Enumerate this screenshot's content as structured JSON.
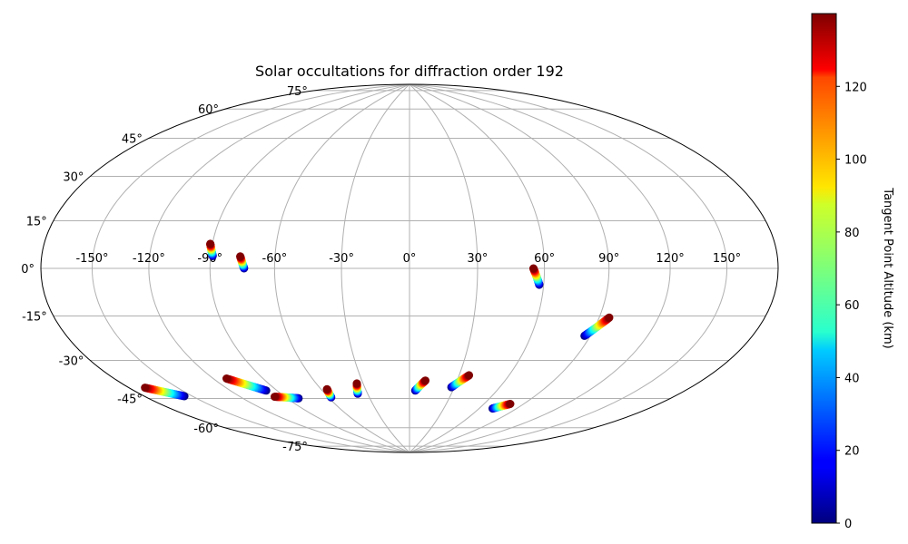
{
  "chart_data": {
    "type": "scatter",
    "projection": "hammer",
    "title": "Solar occultations for diffraction order 192",
    "xlabel": "",
    "ylabel": "",
    "grid": true,
    "lon_ticks": [
      -150,
      -120,
      -90,
      -60,
      -30,
      0,
      30,
      60,
      90,
      120,
      150
    ],
    "lat_ticks": [
      75,
      60,
      45,
      30,
      15,
      0,
      -15,
      -30,
      -45,
      -60,
      -75
    ],
    "lon_tick_labels": [
      "-150°",
      "-120°",
      "-90°",
      "-60°",
      "-30°",
      "0°",
      "30°",
      "60°",
      "90°",
      "120°",
      "150°"
    ],
    "lat_tick_labels": [
      "75°",
      "60°",
      "45°",
      "30°",
      "15°",
      "0°",
      "-15°",
      "-30°",
      "-45°",
      "-60°",
      "-75°"
    ],
    "colorbar": {
      "label": "Tangent Point Altitude (km)",
      "colormap": "jet",
      "range": [
        0,
        140
      ],
      "ticks": [
        0,
        20,
        40,
        60,
        80,
        100,
        120
      ],
      "tick_labels": [
        "0",
        "20",
        "40",
        "60",
        "80",
        "100",
        "120"
      ]
    },
    "tracks": [
      {
        "lon_low": -155,
        "lat_low": -48,
        "lon_high": -170,
        "lat_high": -42
      },
      {
        "lon_low": -82,
        "lat_low": -57,
        "lon_high": -97,
        "lat_high": -55
      },
      {
        "lon_low": -97,
        "lat_low": -52,
        "lon_high": -112,
        "lat_high": -45
      },
      {
        "lon_low": -89,
        "lat_low": 5,
        "lon_high": -91,
        "lat_high": 10
      },
      {
        "lon_low": -74,
        "lat_low": 0,
        "lon_high": -76,
        "lat_high": 5
      },
      {
        "lon_low": -58,
        "lat_low": -58,
        "lon_high": -56,
        "lat_high": -54
      },
      {
        "lon_low": -37,
        "lat_low": -57,
        "lon_high": -34,
        "lat_high": -52
      },
      {
        "lon_low": 4,
        "lat_low": -56,
        "lon_high": 10,
        "lat_high": -51
      },
      {
        "lon_low": 28,
        "lat_low": -54,
        "lon_high": 36,
        "lat_high": -48
      },
      {
        "lon_low": 58,
        "lat_low": -7,
        "lon_high": 55,
        "lat_high": 0
      },
      {
        "lon_low": 87,
        "lat_low": -28,
        "lon_high": 95,
        "lat_high": -20
      },
      {
        "lon_low": 71,
        "lat_low": -63,
        "lon_high": 80,
        "lat_high": -60
      }
    ],
    "altitude_range": [
      0,
      140
    ]
  }
}
